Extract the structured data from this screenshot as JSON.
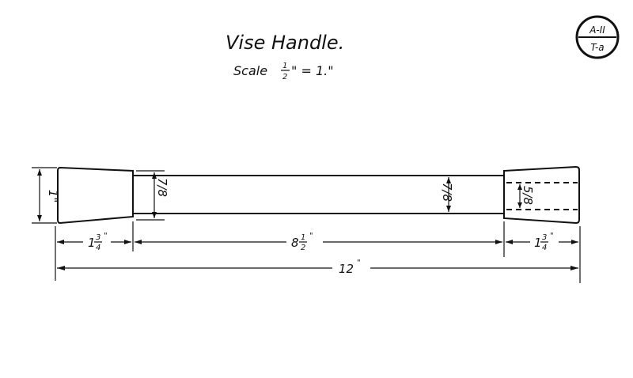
{
  "title": "Vise Handle.",
  "scale": {
    "prefix": "Scale",
    "num": "1",
    "den": "2",
    "suffix": "\" = 1.\""
  },
  "plate_id": {
    "top": "A-II",
    "bottom": "T-a"
  },
  "dimensions": {
    "left_end_length": {
      "whole": "1",
      "num": "3",
      "den": "4",
      "unit": "\""
    },
    "shank_length": {
      "whole": "8",
      "num": "1",
      "den": "2",
      "unit": "\""
    },
    "right_end_length": {
      "whole": "1",
      "num": "3",
      "den": "4",
      "unit": "\""
    },
    "overall_length": {
      "text": "12",
      "unit": "\""
    },
    "left_end_diameter": "1\"",
    "shank_diameter_left": "7/8",
    "shank_diameter_right": "7/8",
    "bore_diameter": "5/8"
  }
}
